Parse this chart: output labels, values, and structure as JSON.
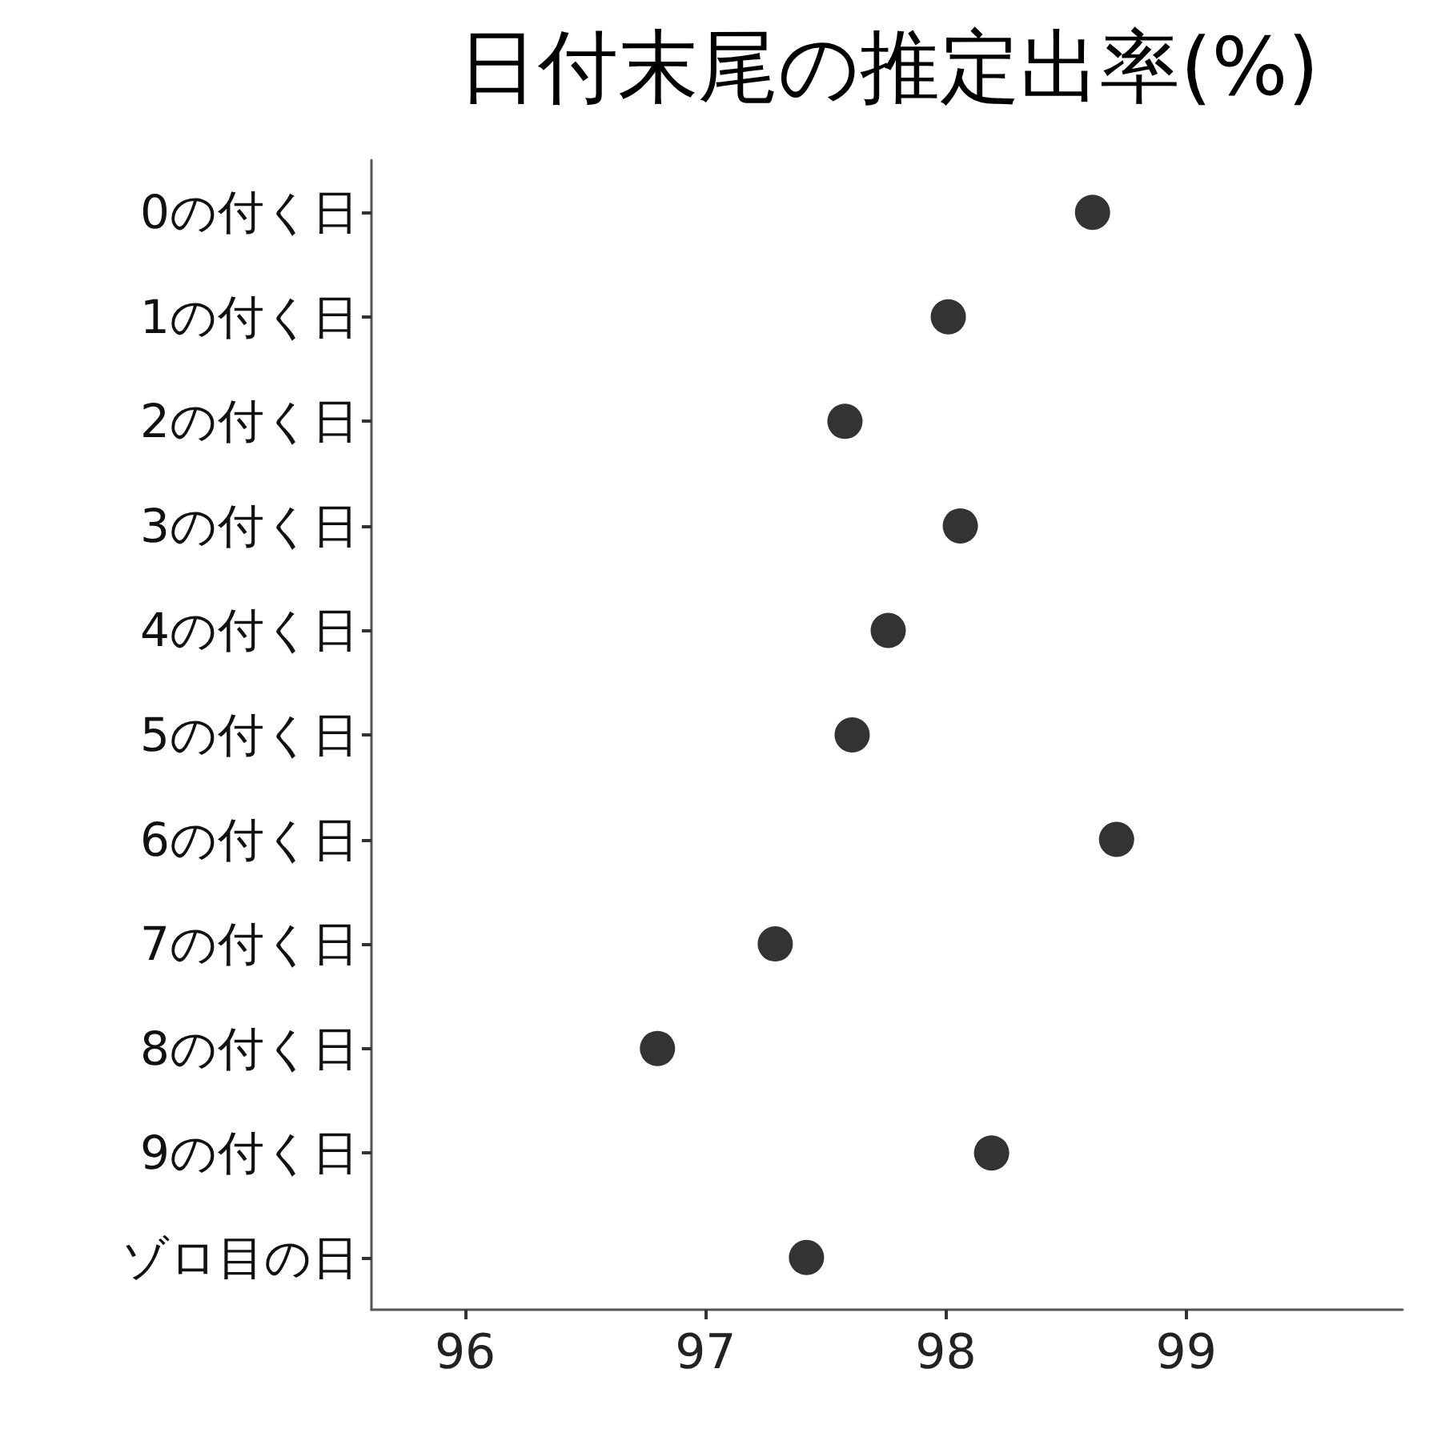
{
  "chart_data": {
    "type": "scatter",
    "title": "日付末尾の推定出率(%)",
    "orientation": "horizontal",
    "categories": [
      "0の付く日",
      "1の付く日",
      "2の付く日",
      "3の付く日",
      "4の付く日",
      "5の付く日",
      "6の付く日",
      "7の付く日",
      "8の付く日",
      "9の付く日",
      "ゾロ目の日"
    ],
    "series": [
      {
        "color": "#000000",
        "values": [
          98.61,
          98.01,
          97.58,
          98.06,
          97.76,
          97.61,
          98.71,
          97.29,
          96.8,
          98.19,
          97.42
        ]
      }
    ],
    "xlim": [
      95.61,
      99.9
    ],
    "xticks": [
      96,
      97,
      98,
      99
    ],
    "grid": false,
    "marker": "circle"
  }
}
